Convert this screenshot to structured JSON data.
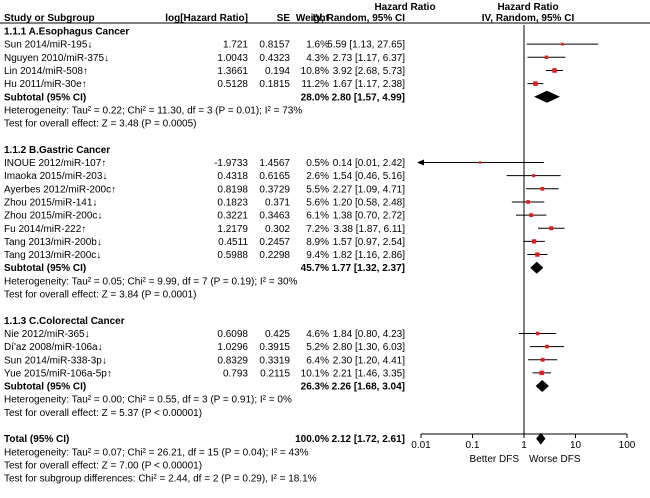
{
  "chart_data": {
    "type": "forest",
    "title": "Hazard Ratio",
    "method": "IV, Random, 95% CI",
    "columns": {
      "study": "Study or Subgroup",
      "log_hr": "log[Hazard Ratio]",
      "se": "SE",
      "weight": "Weight",
      "ci": "IV, Random, 95% CI",
      "plot_title": "Hazard Ratio",
      "plot_subtitle": "IV, Random, 95% CI"
    },
    "axis": {
      "scale": "log",
      "range": [
        0.01,
        100
      ],
      "ticks": [
        {
          "value": 0.01,
          "label": "0.01"
        },
        {
          "value": 0.1,
          "label": "0.1"
        },
        {
          "value": 1,
          "label": "1"
        },
        {
          "value": 10,
          "label": "10"
        },
        {
          "value": 100,
          "label": "100"
        }
      ],
      "left_label": "Better DFS",
      "right_label": "Worse DFS"
    },
    "subgroups": [
      {
        "name": "1.1.1 A.Esophagus Cancer",
        "studies": [
          {
            "study": "Sun 2014/miR-195↓",
            "log_hr": "1.721",
            "se": "0.8157",
            "weight": "1.6%",
            "ci_text": "5.59 [1.13, 27.65]",
            "hr": 5.59,
            "lo": 1.13,
            "hi": 27.65,
            "w": 1.6
          },
          {
            "study": "Nguyen 2010/miR-375↓",
            "log_hr": "1.0043",
            "se": "0.4323",
            "weight": "4.3%",
            "ci_text": "2.73 [1.17, 6.37]",
            "hr": 2.73,
            "lo": 1.17,
            "hi": 6.37,
            "w": 4.3
          },
          {
            "study": "Lin 2014/miR-508↑",
            "log_hr": "1.3661",
            "se": "0.194",
            "weight": "10.8%",
            "ci_text": "3.92 [2.68, 5.73]",
            "hr": 3.92,
            "lo": 2.68,
            "hi": 5.73,
            "w": 10.8
          },
          {
            "study": "Hu 2011/miR-30e↑",
            "log_hr": "0.5128",
            "se": "0.1815",
            "weight": "11.2%",
            "ci_text": "1.67 [1.17, 2.38]",
            "hr": 1.67,
            "lo": 1.17,
            "hi": 2.38,
            "w": 11.2
          }
        ],
        "subtotal": {
          "label": "Subtotal (95% CI)",
          "weight": "28.0%",
          "ci_text": "2.80 [1.57, 4.99]",
          "hr": 2.8,
          "lo": 1.57,
          "hi": 4.99
        },
        "heterogeneity": "Heterogeneity: Tau² = 0.22; Chi² = 11.30, df = 3 (P = 0.01); I² = 73%",
        "overall_test": "Test for overall effect: Z = 3.48 (P = 0.0005)"
      },
      {
        "name": "1.1.2 B.Gastric Cancer",
        "studies": [
          {
            "study": "INOUE 2012/miR-107↑",
            "log_hr": "-1.9733",
            "se": "1.4567",
            "weight": "0.5%",
            "ci_text": "0.14 [0.01, 2.42]",
            "hr": 0.14,
            "lo": 0.01,
            "hi": 2.42,
            "w": 0.5,
            "arrow_left": true
          },
          {
            "study": "Imaoka 2015/miR-203↓",
            "log_hr": "0.4318",
            "se": "0.6165",
            "weight": "2.6%",
            "ci_text": "1.54 [0.46, 5.16]",
            "hr": 1.54,
            "lo": 0.46,
            "hi": 5.16,
            "w": 2.6
          },
          {
            "study": "Ayerbes 2012/miR-200c↑",
            "log_hr": "0.8198",
            "se": "0.3729",
            "weight": "5.5%",
            "ci_text": "2.27 [1.09, 4.71]",
            "hr": 2.27,
            "lo": 1.09,
            "hi": 4.71,
            "w": 5.5
          },
          {
            "study": "Zhou 2015/miR-141↓",
            "log_hr": "0.1823",
            "se": "0.371",
            "weight": "5.6%",
            "ci_text": "1.20 [0.58, 2.48]",
            "hr": 1.2,
            "lo": 0.58,
            "hi": 2.48,
            "w": 5.6
          },
          {
            "study": "Zhou 2015/miR-200c↓",
            "log_hr": "0.3221",
            "se": "0.3463",
            "weight": "6.1%",
            "ci_text": "1.38 [0.70, 2.72]",
            "hr": 1.38,
            "lo": 0.7,
            "hi": 2.72,
            "w": 6.1
          },
          {
            "study": "Fu 2014/miR-222↑",
            "log_hr": "1.2179",
            "se": "0.302",
            "weight": "7.2%",
            "ci_text": "3.38 [1.87, 6.11]",
            "hr": 3.38,
            "lo": 1.87,
            "hi": 6.11,
            "w": 7.2
          },
          {
            "study": "Tang  2013/miR-200b↓",
            "log_hr": "0.4511",
            "se": "0.2457",
            "weight": "8.9%",
            "ci_text": "1.57 [0.97, 2.54]",
            "hr": 1.57,
            "lo": 0.97,
            "hi": 2.54,
            "w": 8.9
          },
          {
            "study": "Tang  2013/miR-200c↓",
            "log_hr": "0.5988",
            "se": "0.2298",
            "weight": "9.4%",
            "ci_text": "1.82 [1.16, 2.86]",
            "hr": 1.82,
            "lo": 1.16,
            "hi": 2.86,
            "w": 9.4
          }
        ],
        "subtotal": {
          "label": "Subtotal (95% CI)",
          "weight": "45.7%",
          "ci_text": "1.77 [1.32, 2.37]",
          "hr": 1.77,
          "lo": 1.32,
          "hi": 2.37
        },
        "heterogeneity": "Heterogeneity: Tau² = 0.05; Chi² = 9.99, df = 7 (P = 0.19); I² = 30%",
        "overall_test": "Test for overall effect: Z = 3.84 (P = 0.0001)"
      },
      {
        "name": "1.1.3 C.Colorectal Cancer",
        "studies": [
          {
            "study": "Nie  2012/miR-365↓",
            "log_hr": "0.6098",
            "se": "0.425",
            "weight": "4.6%",
            "ci_text": "1.84 [0.80, 4.23]",
            "hr": 1.84,
            "lo": 0.8,
            "hi": 4.23,
            "w": 4.6
          },
          {
            "study": "Dí'az 2008/miR-106a↓",
            "log_hr": "1.0296",
            "se": "0.3915",
            "weight": "5.2%",
            "ci_text": "2.80 [1.30, 6.03]",
            "hr": 2.8,
            "lo": 1.3,
            "hi": 6.03,
            "w": 5.2
          },
          {
            "study": "Sun 2014/miR-338-3p↓",
            "log_hr": "0.8329",
            "se": "0.3319",
            "weight": "6.4%",
            "ci_text": "2.30 [1.20, 4.41]",
            "hr": 2.3,
            "lo": 1.2,
            "hi": 4.41,
            "w": 6.4
          },
          {
            "study": "Yue 2015/miR-106a-5p↑",
            "log_hr": "0.793",
            "se": "0.2115",
            "weight": "10.1%",
            "ci_text": "2.21 [1.46, 3.35]",
            "hr": 2.21,
            "lo": 1.46,
            "hi": 3.35,
            "w": 10.1
          }
        ],
        "subtotal": {
          "label": "Subtotal (95% CI)",
          "weight": "26.3%",
          "ci_text": "2.26 [1.68, 3.04]",
          "hr": 2.26,
          "lo": 1.68,
          "hi": 3.04
        },
        "heterogeneity": "Heterogeneity: Tau² = 0.00; Chi² = 0.55, df = 3 (P = 0.91); I² = 0%",
        "overall_test": "Test for overall effect: Z = 5.37 (P < 0.00001)"
      }
    ],
    "total": {
      "label": "Total (95% CI)",
      "weight": "100.0%",
      "ci_text": "2.12 [1.72, 2.61]",
      "hr": 2.12,
      "lo": 1.72,
      "hi": 2.61,
      "heterogeneity": "Heterogeneity: Tau² = 0.07; Chi² = 26.21, df = 15 (P = 0.04); I² = 43%",
      "overall_test": "Test for overall effect: Z = 7.00 (P < 0.00001)",
      "subgroup_test": "Test for subgroup differences: Chi² = 2.44, df = 2 (P = 0.29), I² = 18.1%"
    },
    "colors": {
      "point": "#e0201f",
      "line": "#000000",
      "rule": "#000000"
    }
  }
}
